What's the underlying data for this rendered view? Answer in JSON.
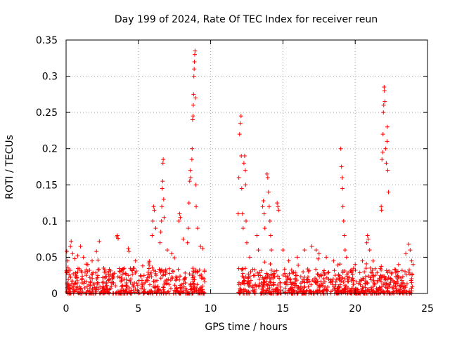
{
  "chart_data": {
    "type": "scatter",
    "title": "Day 199 of 2024, Rate Of TEC Index for receiver reun",
    "xlabel": "GPS time / hours",
    "ylabel": "ROTI / TECUs",
    "xlim": [
      0,
      25
    ],
    "ylim": [
      0,
      0.35
    ],
    "x_ticks": [
      0,
      5,
      10,
      15,
      20,
      25
    ],
    "x_tick_labels": [
      "0",
      "5",
      "10",
      "15",
      "20",
      "25"
    ],
    "y_ticks": [
      0,
      0.05,
      0.1,
      0.15,
      0.2,
      0.25,
      0.3,
      0.35
    ],
    "y_tick_labels": [
      "0",
      "0.05",
      "0.1",
      "0.15",
      "0.2",
      "0.25",
      "0.3",
      "0.35"
    ],
    "grid": true,
    "marker": "+",
    "series": [
      {
        "name": "ROTI",
        "color": "#ff0000",
        "points": [
          [
            0.05,
            0.058
          ],
          [
            0.1,
            0.045
          ],
          [
            0.2,
            0.032
          ],
          [
            0.3,
            0.065
          ],
          [
            0.35,
            0.072
          ],
          [
            0.45,
            0.055
          ],
          [
            0.6,
            0.048
          ],
          [
            0.8,
            0.052
          ],
          [
            1.0,
            0.065
          ],
          [
            1.2,
            0.05
          ],
          [
            1.5,
            0.04
          ],
          [
            1.8,
            0.045
          ],
          [
            2.1,
            0.058
          ],
          [
            2.3,
            0.072
          ],
          [
            2.6,
            0.035
          ],
          [
            3.5,
            0.078
          ],
          [
            3.55,
            0.08
          ],
          [
            3.6,
            0.076
          ],
          [
            4.3,
            0.062
          ],
          [
            4.35,
            0.058
          ],
          [
            4.8,
            0.045
          ],
          [
            5.3,
            0.038
          ],
          [
            5.95,
            0.08
          ],
          [
            6.0,
            0.1
          ],
          [
            6.05,
            0.12
          ],
          [
            6.1,
            0.115
          ],
          [
            6.2,
            0.09
          ],
          [
            6.5,
            0.07
          ],
          [
            6.55,
            0.085
          ],
          [
            6.6,
            0.1
          ],
          [
            6.62,
            0.12
          ],
          [
            6.65,
            0.145
          ],
          [
            6.68,
            0.155
          ],
          [
            6.7,
            0.18
          ],
          [
            6.72,
            0.185
          ],
          [
            6.75,
            0.13
          ],
          [
            6.78,
            0.105
          ],
          [
            7.0,
            0.06
          ],
          [
            7.3,
            0.055
          ],
          [
            7.8,
            0.1
          ],
          [
            7.85,
            0.11
          ],
          [
            7.9,
            0.105
          ],
          [
            8.1,
            0.075
          ],
          [
            8.4,
            0.07
          ],
          [
            8.45,
            0.09
          ],
          [
            8.5,
            0.125
          ],
          [
            8.55,
            0.155
          ],
          [
            8.6,
            0.17
          ],
          [
            8.62,
            0.16
          ],
          [
            8.7,
            0.185
          ],
          [
            8.72,
            0.2
          ],
          [
            8.75,
            0.24
          ],
          [
            8.78,
            0.245
          ],
          [
            8.8,
            0.26
          ],
          [
            8.82,
            0.275
          ],
          [
            8.84,
            0.3
          ],
          [
            8.86,
            0.31
          ],
          [
            8.88,
            0.32
          ],
          [
            8.9,
            0.33
          ],
          [
            8.92,
            0.335
          ],
          [
            8.95,
            0.27
          ],
          [
            8.98,
            0.15
          ],
          [
            9.0,
            0.12
          ],
          [
            9.1,
            0.09
          ],
          [
            9.3,
            0.065
          ],
          [
            9.45,
            0.062
          ],
          [
            11.9,
            0.11
          ],
          [
            11.95,
            0.16
          ],
          [
            12.0,
            0.22
          ],
          [
            12.05,
            0.235
          ],
          [
            12.1,
            0.245
          ],
          [
            12.12,
            0.19
          ],
          [
            12.15,
            0.145
          ],
          [
            12.2,
            0.11
          ],
          [
            12.25,
            0.09
          ],
          [
            12.3,
            0.18
          ],
          [
            12.35,
            0.19
          ],
          [
            12.4,
            0.17
          ],
          [
            12.42,
            0.15
          ],
          [
            12.45,
            0.1
          ],
          [
            12.5,
            0.07
          ],
          [
            12.7,
            0.05
          ],
          [
            13.2,
            0.08
          ],
          [
            13.3,
            0.06
          ],
          [
            13.6,
            0.12
          ],
          [
            13.65,
            0.128
          ],
          [
            13.7,
            0.11
          ],
          [
            13.75,
            0.09
          ],
          [
            13.9,
            0.165
          ],
          [
            13.95,
            0.16
          ],
          [
            14.0,
            0.14
          ],
          [
            14.05,
            0.12
          ],
          [
            14.1,
            0.1
          ],
          [
            14.15,
            0.08
          ],
          [
            14.2,
            0.06
          ],
          [
            14.6,
            0.125
          ],
          [
            14.65,
            0.12
          ],
          [
            14.7,
            0.115
          ],
          [
            15.0,
            0.06
          ],
          [
            15.4,
            0.045
          ],
          [
            16.0,
            0.05
          ],
          [
            16.5,
            0.06
          ],
          [
            17.0,
            0.065
          ],
          [
            17.3,
            0.06
          ],
          [
            17.5,
            0.055
          ],
          [
            18.0,
            0.05
          ],
          [
            18.5,
            0.045
          ],
          [
            19.0,
            0.2
          ],
          [
            19.05,
            0.175
          ],
          [
            19.1,
            0.16
          ],
          [
            19.12,
            0.145
          ],
          [
            19.15,
            0.12
          ],
          [
            19.2,
            0.1
          ],
          [
            19.25,
            0.08
          ],
          [
            19.3,
            0.06
          ],
          [
            19.4,
            0.05
          ],
          [
            20.0,
            0.04
          ],
          [
            20.5,
            0.045
          ],
          [
            20.8,
            0.07
          ],
          [
            20.85,
            0.08
          ],
          [
            20.9,
            0.075
          ],
          [
            21.0,
            0.06
          ],
          [
            21.8,
            0.12
          ],
          [
            21.82,
            0.115
          ],
          [
            21.85,
            0.185
          ],
          [
            21.9,
            0.195
          ],
          [
            21.92,
            0.22
          ],
          [
            21.95,
            0.25
          ],
          [
            21.97,
            0.26
          ],
          [
            22.0,
            0.285
          ],
          [
            22.02,
            0.28
          ],
          [
            22.05,
            0.265
          ],
          [
            22.1,
            0.2
          ],
          [
            22.15,
            0.18
          ],
          [
            22.2,
            0.21
          ],
          [
            22.22,
            0.23
          ],
          [
            22.25,
            0.17
          ],
          [
            22.3,
            0.14
          ],
          [
            23.0,
            0.04
          ],
          [
            23.5,
            0.055
          ],
          [
            23.7,
            0.068
          ],
          [
            23.8,
            0.06
          ],
          [
            23.9,
            0.045
          ],
          [
            24.0,
            0.04
          ]
        ]
      }
    ]
  }
}
